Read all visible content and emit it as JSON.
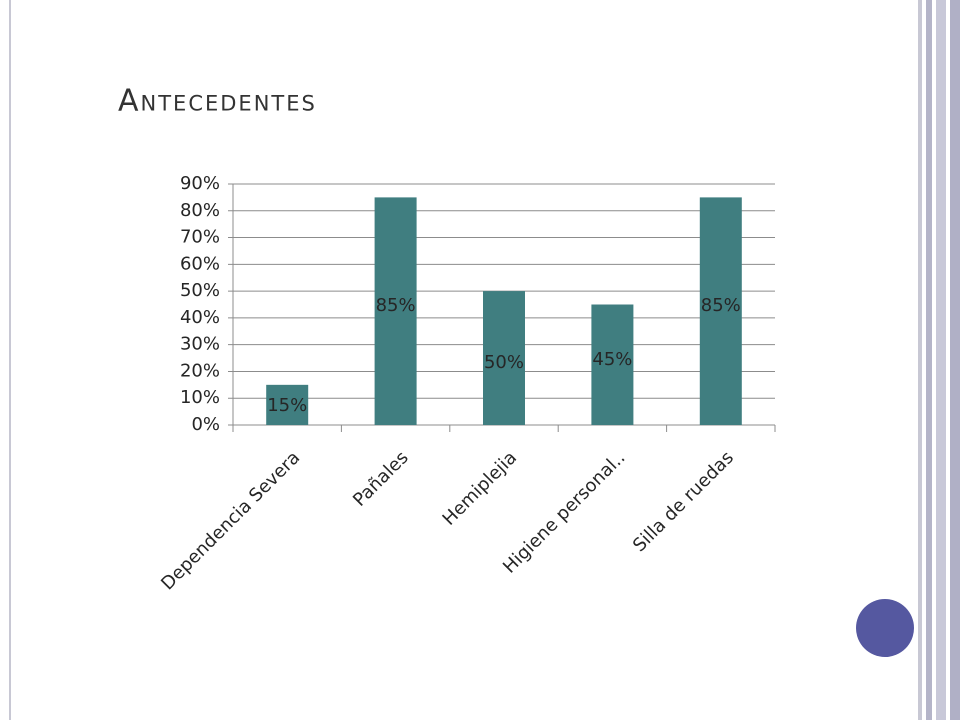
{
  "chart_data": {
    "type": "bar",
    "title": "Antecedentes",
    "categories": [
      "Dependencia Severa",
      "Pañales",
      "Hemiplejia",
      "Higiene personal..",
      "Silla de ruedas"
    ],
    "values": [
      15,
      85,
      50,
      45,
      85
    ],
    "value_labels": [
      "15%",
      "85%",
      "50%",
      "45%",
      "85%"
    ],
    "color": "#407e80",
    "ylim": [
      0,
      90
    ],
    "yticks": [
      {
        "value": 0,
        "label": "0%"
      },
      {
        "value": 10,
        "label": "10%"
      },
      {
        "value": 20,
        "label": "20%"
      },
      {
        "value": 30,
        "label": "30%"
      },
      {
        "value": 40,
        "label": "40%"
      },
      {
        "value": 50,
        "label": "50%"
      },
      {
        "value": 60,
        "label": "60%"
      },
      {
        "value": 70,
        "label": "70%"
      },
      {
        "value": 80,
        "label": "80%"
      },
      {
        "value": 90,
        "label": "90%"
      }
    ],
    "grid": true
  }
}
